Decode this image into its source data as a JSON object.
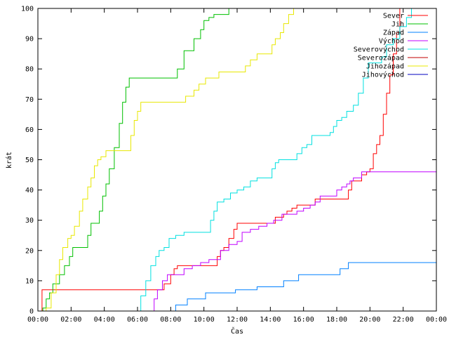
{
  "chart_data": {
    "type": "line",
    "title": "",
    "xlabel": "Čas",
    "ylabel": "krát",
    "xlim": [
      0,
      24
    ],
    "ylim": [
      0,
      100
    ],
    "x_ticks": [
      0,
      2,
      4,
      6,
      8,
      10,
      12,
      14,
      16,
      18,
      20,
      22,
      24
    ],
    "x_tick_labels": [
      "00:00",
      "02:00",
      "04:00",
      "06:00",
      "08:00",
      "10:00",
      "12:00",
      "14:00",
      "16:00",
      "18:00",
      "20:00",
      "22:00",
      "00:00"
    ],
    "y_ticks": [
      0,
      10,
      20,
      30,
      40,
      50,
      60,
      70,
      80,
      90,
      100
    ],
    "y_tick_labels": [
      "0",
      "10",
      "20",
      "30",
      "40",
      "50",
      "60",
      "70",
      "80",
      "90",
      "100"
    ],
    "grid": false,
    "legend_position": "top-right",
    "series": [
      {
        "name": "Sever",
        "color": "#ff0000",
        "points": [
          [
            0,
            0
          ],
          [
            0.25,
            7
          ],
          [
            7.5,
            7
          ],
          [
            7.6,
            9
          ],
          [
            7.9,
            9
          ],
          [
            8,
            12
          ],
          [
            8.2,
            14
          ],
          [
            8.4,
            15
          ],
          [
            10.6,
            15
          ],
          [
            10.8,
            18
          ],
          [
            11,
            20
          ],
          [
            11.2,
            21
          ],
          [
            11.5,
            24
          ],
          [
            11.8,
            27
          ],
          [
            12,
            29
          ],
          [
            14.1,
            29
          ],
          [
            14.3,
            31
          ],
          [
            14.8,
            32
          ],
          [
            15,
            33
          ],
          [
            15.3,
            34
          ],
          [
            15.6,
            35
          ],
          [
            16.5,
            35
          ],
          [
            16.7,
            37
          ],
          [
            18.6,
            37
          ],
          [
            18.7,
            40
          ],
          [
            18.9,
            43
          ],
          [
            19.5,
            45
          ],
          [
            19.8,
            46
          ],
          [
            20,
            47
          ],
          [
            20.2,
            52
          ],
          [
            20.4,
            55
          ],
          [
            20.6,
            58
          ],
          [
            20.8,
            65
          ],
          [
            21,
            72
          ],
          [
            21.2,
            78
          ],
          [
            21.4,
            85
          ],
          [
            21.6,
            92
          ],
          [
            21.8,
            100
          ]
        ]
      },
      {
        "name": "Jih",
        "color": "#00c000",
        "points": [
          [
            0,
            0
          ],
          [
            0.3,
            1
          ],
          [
            0.5,
            4
          ],
          [
            0.7,
            6
          ],
          [
            0.9,
            9
          ],
          [
            1.1,
            9
          ],
          [
            1.3,
            12
          ],
          [
            1.6,
            15
          ],
          [
            1.9,
            18
          ],
          [
            2.1,
            21
          ],
          [
            2.8,
            21
          ],
          [
            3,
            25
          ],
          [
            3.2,
            29
          ],
          [
            3.5,
            29
          ],
          [
            3.7,
            33
          ],
          [
            3.9,
            38
          ],
          [
            4.1,
            42
          ],
          [
            4.3,
            47
          ],
          [
            4.6,
            54
          ],
          [
            4.9,
            62
          ],
          [
            5.1,
            69
          ],
          [
            5.3,
            74
          ],
          [
            5.5,
            77
          ],
          [
            8.2,
            77
          ],
          [
            8.4,
            80
          ],
          [
            8.8,
            86
          ],
          [
            9.2,
            86
          ],
          [
            9.4,
            90
          ],
          [
            9.8,
            93
          ],
          [
            10,
            96
          ],
          [
            10.3,
            97
          ],
          [
            10.6,
            98
          ],
          [
            11.2,
            98
          ],
          [
            11.5,
            100
          ]
        ]
      },
      {
        "name": "Západ",
        "color": "#0080ff",
        "points": [
          [
            8.1,
            0
          ],
          [
            8.3,
            2
          ],
          [
            8.8,
            2
          ],
          [
            9,
            4
          ],
          [
            9.8,
            4
          ],
          [
            10.1,
            6
          ],
          [
            11.6,
            6
          ],
          [
            11.9,
            7
          ],
          [
            13,
            7
          ],
          [
            13.2,
            8
          ],
          [
            14.5,
            8
          ],
          [
            14.8,
            10
          ],
          [
            15.4,
            10
          ],
          [
            15.7,
            12
          ],
          [
            17.8,
            12
          ],
          [
            18.2,
            14
          ],
          [
            18.4,
            14
          ],
          [
            18.7,
            16
          ],
          [
            24,
            16
          ]
        ]
      },
      {
        "name": "Východ",
        "color": "#c000ff",
        "points": [
          [
            6.8,
            0
          ],
          [
            7,
            4
          ],
          [
            7.2,
            7
          ],
          [
            7.5,
            10
          ],
          [
            7.8,
            12
          ],
          [
            8.4,
            12
          ],
          [
            8.8,
            14
          ],
          [
            9.3,
            15
          ],
          [
            9.8,
            16
          ],
          [
            10.3,
            17
          ],
          [
            10.6,
            17
          ],
          [
            11,
            20
          ],
          [
            11.5,
            22
          ],
          [
            12,
            23
          ],
          [
            12.3,
            26
          ],
          [
            12.8,
            27
          ],
          [
            13.3,
            28
          ],
          [
            13.8,
            29
          ],
          [
            14.2,
            30
          ],
          [
            14.7,
            32
          ],
          [
            15.2,
            32
          ],
          [
            15.6,
            33
          ],
          [
            16,
            34
          ],
          [
            16.4,
            35
          ],
          [
            16.7,
            36
          ],
          [
            17,
            38
          ],
          [
            17.6,
            38
          ],
          [
            18,
            40
          ],
          [
            18.3,
            41
          ],
          [
            18.6,
            42
          ],
          [
            18.8,
            43
          ],
          [
            19,
            44
          ],
          [
            19.5,
            46
          ],
          [
            24,
            46
          ]
        ]
      },
      {
        "name": "Severovýchod",
        "color": "#00e0e0",
        "points": [
          [
            6,
            0
          ],
          [
            6.2,
            5
          ],
          [
            6.5,
            10
          ],
          [
            6.8,
            15
          ],
          [
            7.1,
            18
          ],
          [
            7.3,
            20
          ],
          [
            7.6,
            21
          ],
          [
            7.9,
            24
          ],
          [
            8.3,
            25
          ],
          [
            8.8,
            26
          ],
          [
            10.2,
            26
          ],
          [
            10.4,
            30
          ],
          [
            10.6,
            33
          ],
          [
            10.8,
            36
          ],
          [
            11.2,
            37
          ],
          [
            11.6,
            39
          ],
          [
            12,
            40
          ],
          [
            12.4,
            41
          ],
          [
            12.8,
            43
          ],
          [
            13.2,
            44
          ],
          [
            13.7,
            44
          ],
          [
            14.1,
            47
          ],
          [
            14.3,
            49
          ],
          [
            14.5,
            50
          ],
          [
            15.3,
            50
          ],
          [
            15.6,
            52
          ],
          [
            15.9,
            54
          ],
          [
            16.2,
            55
          ],
          [
            16.5,
            58
          ],
          [
            17.4,
            58
          ],
          [
            17.6,
            59
          ],
          [
            17.8,
            61
          ],
          [
            18,
            63
          ],
          [
            18.3,
            64
          ],
          [
            18.6,
            66
          ],
          [
            19,
            68
          ],
          [
            19.3,
            72
          ],
          [
            19.6,
            77
          ],
          [
            19.9,
            82
          ],
          [
            20.3,
            82
          ],
          [
            20.7,
            84
          ],
          [
            21,
            88
          ],
          [
            21.4,
            90
          ],
          [
            21.8,
            94
          ],
          [
            22.2,
            97
          ],
          [
            22.5,
            100
          ]
        ]
      },
      {
        "name": "Severozápad",
        "color": "#c00000",
        "points": [
          [
            7.5,
            7.5
          ]
        ]
      },
      {
        "name": "Jihozápad",
        "color": "#e8e800",
        "points": [
          [
            0,
            0
          ],
          [
            0.5,
            1
          ],
          [
            0.8,
            6
          ],
          [
            1.1,
            12
          ],
          [
            1.3,
            17
          ],
          [
            1.5,
            21
          ],
          [
            1.8,
            24
          ],
          [
            2,
            25
          ],
          [
            2.2,
            28
          ],
          [
            2.5,
            33
          ],
          [
            2.7,
            37
          ],
          [
            3,
            41
          ],
          [
            3.2,
            44
          ],
          [
            3.4,
            48
          ],
          [
            3.6,
            50
          ],
          [
            3.8,
            51
          ],
          [
            4.1,
            53
          ],
          [
            5.3,
            53
          ],
          [
            5.6,
            58
          ],
          [
            5.8,
            63
          ],
          [
            6,
            66
          ],
          [
            6.2,
            69
          ],
          [
            8.6,
            69
          ],
          [
            8.9,
            71
          ],
          [
            9.4,
            73
          ],
          [
            9.7,
            75
          ],
          [
            10.1,
            77
          ],
          [
            10.6,
            77
          ],
          [
            10.9,
            79
          ],
          [
            12.2,
            79
          ],
          [
            12.5,
            81
          ],
          [
            12.8,
            83
          ],
          [
            13.2,
            85
          ],
          [
            13.8,
            85
          ],
          [
            14.1,
            88
          ],
          [
            14.3,
            90
          ],
          [
            14.6,
            92
          ],
          [
            14.8,
            95
          ],
          [
            15.1,
            98
          ],
          [
            15.4,
            100
          ]
        ]
      },
      {
        "name": "Jihovýchod",
        "color": "#0000c0",
        "points": []
      }
    ]
  }
}
